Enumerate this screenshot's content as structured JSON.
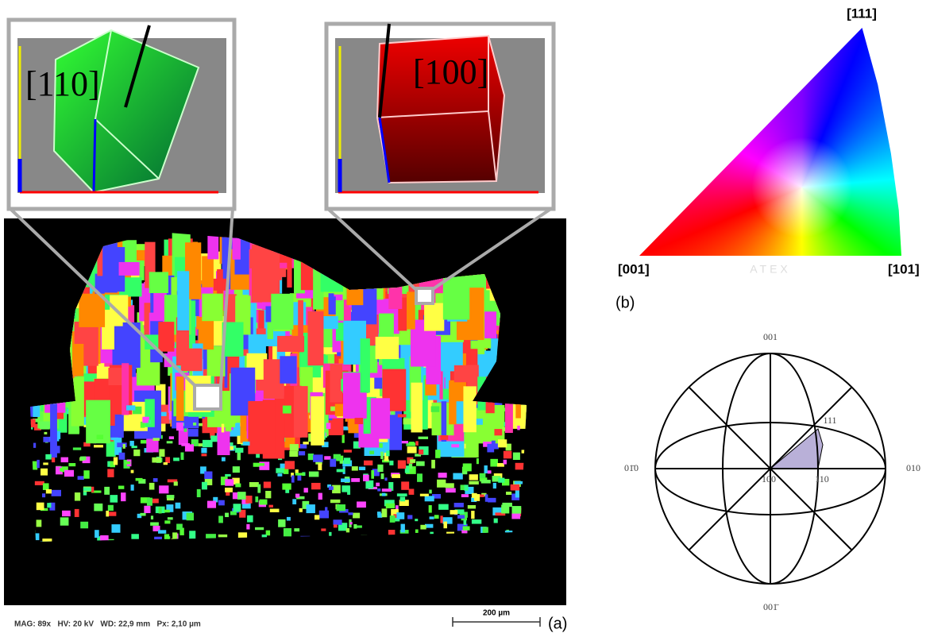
{
  "panel_a": {
    "insets": [
      {
        "label": "[110]"
      },
      {
        "label": "[100]"
      }
    ],
    "info": "MAG: 89x   HV: 20 kV   WD: 22,9 mm   Px: 2,10 µm",
    "scale_bar": "200 µm",
    "label": "(a)"
  },
  "panel_b": {
    "triangle": {
      "top": "[111]",
      "left": "[001]",
      "right": "[101]",
      "watermark": "ATEX"
    },
    "label": "(b)"
  },
  "stereogram": {
    "top": "001",
    "bottom": "001̄",
    "left": "01̄0",
    "right": "010",
    "p111": "111",
    "p100": "100",
    "p110": "110"
  }
}
